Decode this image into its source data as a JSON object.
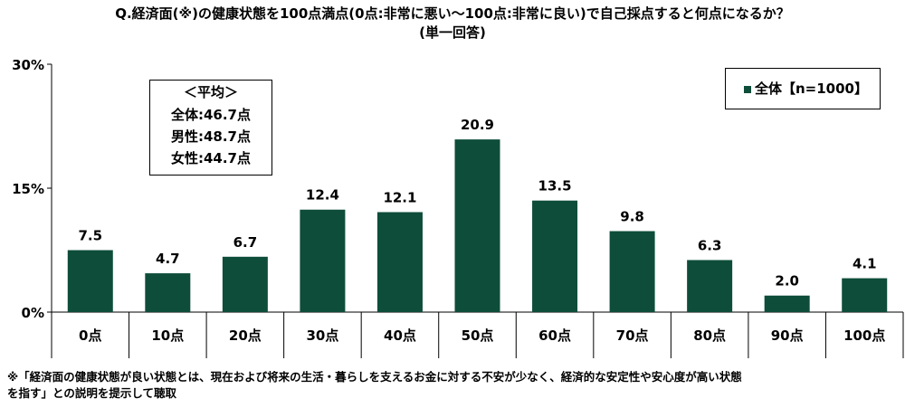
{
  "title": {
    "line1": "Q.経済面(※)の健康状態を100点満点(0点:非常に悪い～100点:非常に良い)で自己採点すると何点になるか？",
    "line2": "(単一回答)"
  },
  "average_box": {
    "heading": "＜平均＞",
    "lines": [
      "全体:46.7点",
      "男性:48.7点",
      "女性:44.7点"
    ]
  },
  "legend": {
    "label": "全体【n=1000】"
  },
  "footnote": {
    "line1": "※「経済面の健康状態が良い状態とは、現在および将来の生活・暮らしを支えるお金に対する不安が少なく、経済的な安定性や安心度が高い状態",
    "line2": "を指す」との説明を提示して聴取"
  },
  "colors": {
    "bar": "#0e4d3a",
    "axis": "#000000",
    "grid": "#7f7f7f"
  },
  "chart_data": {
    "type": "bar",
    "categories": [
      "0点",
      "10点",
      "20点",
      "30点",
      "40点",
      "50点",
      "60点",
      "70点",
      "80点",
      "90点",
      "100点"
    ],
    "series": [
      {
        "name": "全体【n=1000】",
        "values": [
          7.5,
          4.7,
          6.7,
          12.4,
          12.1,
          20.9,
          13.5,
          9.8,
          6.3,
          2.0,
          4.1
        ]
      }
    ],
    "yticks": [
      "0%",
      "15%",
      "30%"
    ],
    "ylim": [
      0,
      30
    ],
    "grid": false,
    "legend_position": "top-right"
  }
}
